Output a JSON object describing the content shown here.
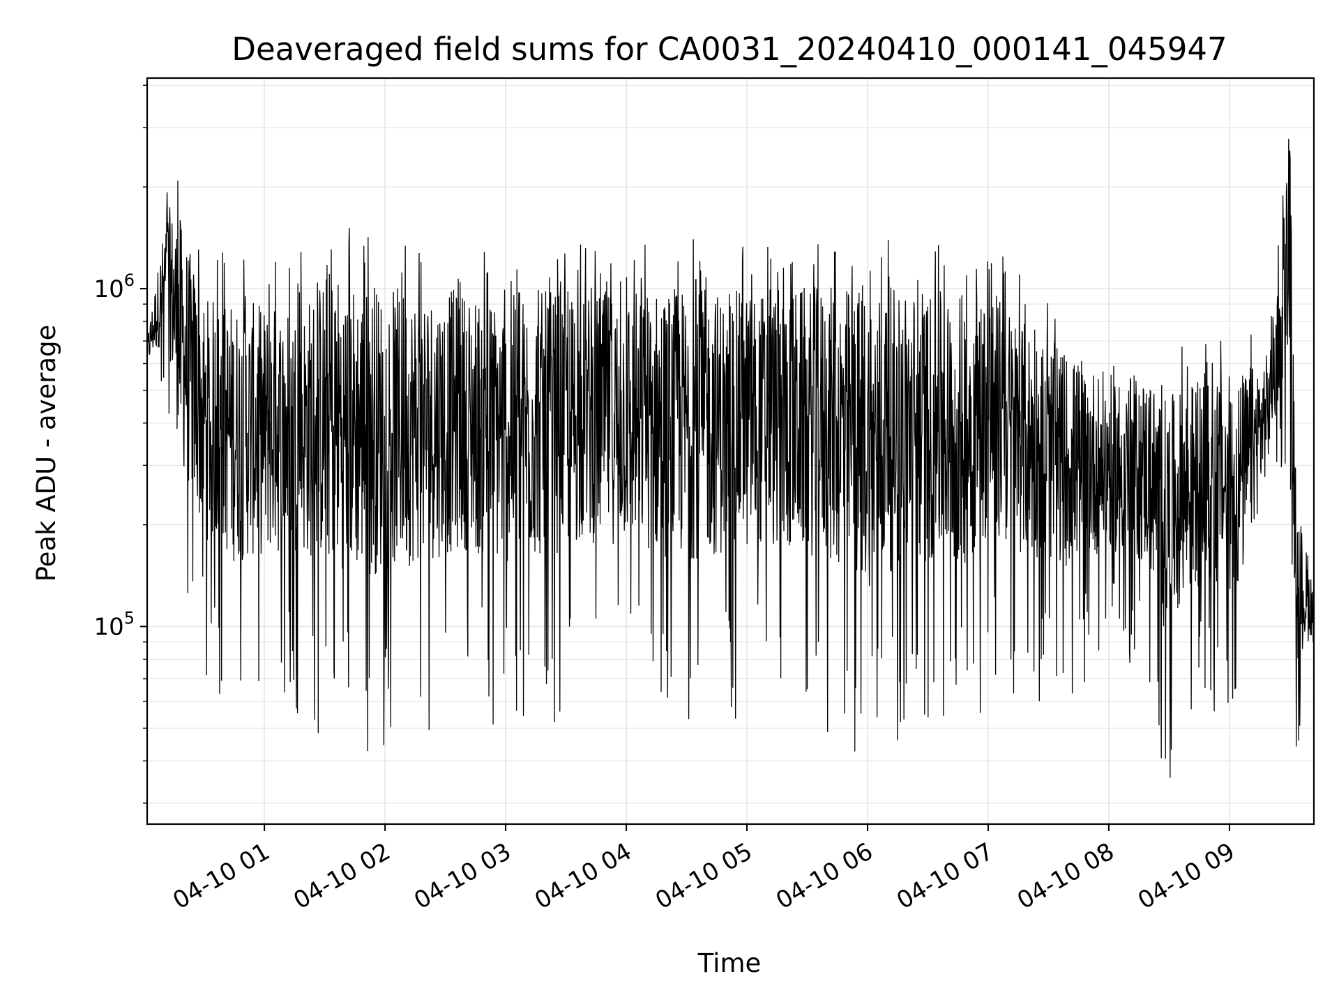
{
  "chart_data": {
    "type": "line",
    "title": "Deaveraged field sums for CA0031_20240410_000141_045947",
    "xlabel": "Time",
    "ylabel": "Peak ADU - average",
    "x_axis": {
      "kind": "datetime",
      "start": "2024-04-10 00:01:41",
      "end": "2024-04-10 09:42:00",
      "ticks": [
        {
          "value": "2024-04-10 01:00",
          "label": "04-10 01"
        },
        {
          "value": "2024-04-10 02:00",
          "label": "04-10 02"
        },
        {
          "value": "2024-04-10 03:00",
          "label": "04-10 03"
        },
        {
          "value": "2024-04-10 04:00",
          "label": "04-10 04"
        },
        {
          "value": "2024-04-10 05:00",
          "label": "04-10 05"
        },
        {
          "value": "2024-04-10 06:00",
          "label": "04-10 06"
        },
        {
          "value": "2024-04-10 07:00",
          "label": "04-10 07"
        },
        {
          "value": "2024-04-10 08:00",
          "label": "04-10 08"
        },
        {
          "value": "2024-04-10 09:00",
          "label": "04-10 09"
        }
      ]
    },
    "y_axis": {
      "scale": "log",
      "range": [
        26000,
        4200000
      ],
      "major_ticks": [
        {
          "value": 100000,
          "base": "10",
          "exp": "5"
        },
        {
          "value": 1000000,
          "base": "10",
          "exp": "6"
        }
      ]
    },
    "grid": true,
    "legend": "none",
    "line_color": "#000000",
    "series_envelope": [
      {
        "t": "2024-04-10 00:01:41",
        "min": 520000,
        "max": 750000
      },
      {
        "t": "2024-04-10 00:12:00",
        "min": 420000,
        "max": 2100000
      },
      {
        "t": "2024-04-10 00:18:00",
        "min": 110000,
        "max": 2200000
      },
      {
        "t": "2024-04-10 00:30:00",
        "min": 65000,
        "max": 1300000
      },
      {
        "t": "2024-04-10 00:45:00",
        "min": 50000,
        "max": 1300000
      },
      {
        "t": "2024-04-10 01:00:00",
        "min": 55000,
        "max": 1250000
      },
      {
        "t": "2024-04-10 01:20:00",
        "min": 52000,
        "max": 1300000
      },
      {
        "t": "2024-04-10 01:33:00",
        "min": 42000,
        "max": 1750000
      },
      {
        "t": "2024-04-10 01:50:00",
        "min": 40000,
        "max": 1500000
      },
      {
        "t": "2024-04-10 02:10:00",
        "min": 45000,
        "max": 1450000
      },
      {
        "t": "2024-04-10 02:40:00",
        "min": 55000,
        "max": 1400000
      },
      {
        "t": "2024-04-10 02:55:00",
        "min": 47000,
        "max": 1350000
      },
      {
        "t": "2024-04-10 03:20:00",
        "min": 50000,
        "max": 1400000
      },
      {
        "t": "2024-04-10 03:40:00",
        "min": 60000,
        "max": 1350000
      },
      {
        "t": "2024-04-10 04:00:00",
        "min": 58000,
        "max": 1400000
      },
      {
        "t": "2024-04-10 04:25:00",
        "min": 48000,
        "max": 1450000
      },
      {
        "t": "2024-04-10 04:50:00",
        "min": 52000,
        "max": 1400000
      },
      {
        "t": "2024-04-10 05:10:00",
        "min": 55000,
        "max": 1400000
      },
      {
        "t": "2024-04-10 05:35:00",
        "min": 50000,
        "max": 1450000
      },
      {
        "t": "2024-04-10 06:00:00",
        "min": 36000,
        "max": 1500000
      },
      {
        "t": "2024-04-10 06:20:00",
        "min": 48000,
        "max": 1450000
      },
      {
        "t": "2024-04-10 06:45:00",
        "min": 44000,
        "max": 1400000
      },
      {
        "t": "2024-04-10 07:00:00",
        "min": 60000,
        "max": 1450000
      },
      {
        "t": "2024-04-10 07:20:00",
        "min": 60000,
        "max": 1050000
      },
      {
        "t": "2024-04-10 07:40:00",
        "min": 60000,
        "max": 850000
      },
      {
        "t": "2024-04-10 08:00:00",
        "min": 80000,
        "max": 700000
      },
      {
        "t": "2024-04-10 08:20:00",
        "min": 65000,
        "max": 720000
      },
      {
        "t": "2024-04-10 08:28:00",
        "min": 33000,
        "max": 650000
      },
      {
        "t": "2024-04-10 08:45:00",
        "min": 55000,
        "max": 700000
      },
      {
        "t": "2024-04-10 09:05:00",
        "min": 48000,
        "max": 750000
      },
      {
        "t": "2024-04-10 09:20:00",
        "min": 200000,
        "max": 750000
      },
      {
        "t": "2024-04-10 09:30:00",
        "min": 300000,
        "max": 3800000
      },
      {
        "t": "2024-04-10 09:33:00",
        "min": 37000,
        "max": 300000
      },
      {
        "t": "2024-04-10 09:42:00",
        "min": 80000,
        "max": 140000
      }
    ]
  }
}
